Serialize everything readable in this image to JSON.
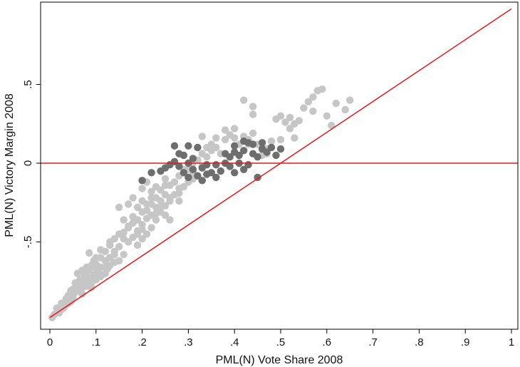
{
  "chart_data": {
    "type": "scatter",
    "title": "",
    "xlabel": "PML(N) Vote Share 2008",
    "ylabel": "PML(N) Victory Margin 2008",
    "xlim": [
      0,
      1
    ],
    "ylim": [
      -1,
      0.5
    ],
    "x_ticks": [
      0,
      0.1,
      0.2,
      0.3,
      0.4,
      0.5,
      0.6,
      0.7,
      0.8,
      0.9,
      1
    ],
    "x_tick_labels": [
      "0",
      ".1",
      ".2",
      ".3",
      ".4",
      ".5",
      ".6",
      ".7",
      ".8",
      ".9",
      "1"
    ],
    "y_ticks": [
      -0.5,
      0,
      0.5
    ],
    "y_tick_labels": [
      "-.5",
      "0",
      ".5"
    ],
    "grid": false,
    "legend": "none",
    "reference_lines": [
      {
        "kind": "horizontal",
        "y": 0,
        "color": "#e41a1c"
      },
      {
        "kind": "segment",
        "x1": 0,
        "y1": -0.98,
        "x2": 1,
        "y2": 0.98,
        "color": "#e41a1c"
      }
    ],
    "series": [
      {
        "color": "#c6c6c6",
        "points": [
          [
            0.005,
            -0.98
          ],
          [
            0.01,
            -0.96
          ],
          [
            0.015,
            -0.95
          ],
          [
            0.02,
            -0.94
          ],
          [
            0.025,
            -0.93
          ],
          [
            0.03,
            -0.91
          ],
          [
            0.035,
            -0.9
          ],
          [
            0.04,
            -0.89
          ],
          [
            0.045,
            -0.88
          ],
          [
            0.05,
            -0.85
          ],
          [
            0.04,
            -0.84
          ],
          [
            0.055,
            -0.82
          ],
          [
            0.06,
            -0.8
          ],
          [
            0.05,
            -0.8
          ],
          [
            0.07,
            -0.79
          ],
          [
            0.065,
            -0.77
          ],
          [
            0.08,
            -0.78
          ],
          [
            0.075,
            -0.75
          ],
          [
            0.09,
            -0.76
          ],
          [
            0.085,
            -0.73
          ],
          [
            0.1,
            -0.74
          ],
          [
            0.095,
            -0.71
          ],
          [
            0.11,
            -0.72
          ],
          [
            0.06,
            -0.7
          ],
          [
            0.07,
            -0.68
          ],
          [
            0.08,
            -0.66
          ],
          [
            0.105,
            -0.69
          ],
          [
            0.12,
            -0.7
          ],
          [
            0.09,
            -0.65
          ],
          [
            0.1,
            -0.64
          ],
          [
            0.11,
            -0.66
          ],
          [
            0.125,
            -0.67
          ],
          [
            0.13,
            -0.65
          ],
          [
            0.14,
            -0.63
          ],
          [
            0.15,
            -0.62
          ],
          [
            0.12,
            -0.62
          ],
          [
            0.1,
            -0.6
          ],
          [
            0.13,
            -0.6
          ],
          [
            0.085,
            -0.57
          ],
          [
            0.11,
            -0.55
          ],
          [
            0.14,
            -0.56
          ],
          [
            0.16,
            -0.58
          ],
          [
            0.15,
            -0.53
          ],
          [
            0.13,
            -0.5
          ],
          [
            0.17,
            -0.5
          ],
          [
            0.19,
            -0.52
          ],
          [
            0.18,
            -0.47
          ],
          [
            0.2,
            -0.48
          ],
          [
            0.16,
            -0.44
          ],
          [
            0.19,
            -0.43
          ],
          [
            0.17,
            -0.4
          ],
          [
            0.18,
            -0.38
          ],
          [
            0.21,
            -0.45
          ],
          [
            0.22,
            -0.41
          ],
          [
            0.2,
            -0.39
          ],
          [
            0.19,
            -0.36
          ],
          [
            0.21,
            -0.35
          ],
          [
            0.22,
            -0.33
          ],
          [
            0.23,
            -0.36
          ],
          [
            0.24,
            -0.31
          ],
          [
            0.2,
            -0.31
          ],
          [
            0.23,
            -0.28
          ],
          [
            0.19,
            -0.28
          ],
          [
            0.21,
            -0.26
          ],
          [
            0.24,
            -0.24
          ],
          [
            0.25,
            -0.27
          ],
          [
            0.22,
            -0.22
          ],
          [
            0.25,
            -0.2
          ],
          [
            0.24,
            -0.17
          ],
          [
            0.26,
            -0.22
          ],
          [
            0.23,
            -0.15
          ],
          [
            0.28,
            -0.19
          ],
          [
            0.26,
            -0.14
          ],
          [
            0.27,
            -0.12
          ],
          [
            0.25,
            -0.1
          ],
          [
            0.22,
            -0.18
          ],
          [
            0.21,
            -0.12
          ],
          [
            0.2,
            -0.16
          ],
          [
            0.18,
            -0.22
          ],
          [
            0.17,
            -0.26
          ],
          [
            0.15,
            -0.28
          ],
          [
            0.28,
            -0.08
          ],
          [
            0.3,
            -0.12
          ],
          [
            0.29,
            -0.04
          ],
          [
            0.31,
            -0.06
          ],
          [
            0.32,
            0.02
          ],
          [
            0.33,
            -0.02
          ],
          [
            0.34,
            0.04
          ],
          [
            0.35,
            0.08
          ],
          [
            0.33,
            0.17
          ],
          [
            0.36,
            0.1
          ],
          [
            0.37,
            0.06
          ],
          [
            0.38,
            0.21
          ],
          [
            0.39,
            0.18
          ],
          [
            0.4,
            0.16
          ],
          [
            0.41,
            0.12
          ],
          [
            0.42,
            0.17
          ],
          [
            0.43,
            0.15
          ],
          [
            0.44,
            0.19
          ],
          [
            0.42,
            0.4
          ],
          [
            0.44,
            0.31
          ],
          [
            0.45,
            0.12
          ],
          [
            0.46,
            0.1
          ],
          [
            0.47,
            0.06
          ],
          [
            0.48,
            0.14
          ],
          [
            0.49,
            0.28
          ],
          [
            0.5,
            0.3
          ],
          [
            0.51,
            0.26
          ],
          [
            0.52,
            0.22
          ],
          [
            0.5,
            0.15
          ],
          [
            0.53,
            0.16
          ],
          [
            0.54,
            0.27
          ],
          [
            0.55,
            0.35
          ],
          [
            0.56,
            0.39
          ],
          [
            0.57,
            0.33
          ],
          [
            0.58,
            0.46
          ],
          [
            0.59,
            0.47
          ],
          [
            0.6,
            0.3
          ],
          [
            0.61,
            0.24
          ],
          [
            0.62,
            0.38
          ],
          [
            0.64,
            0.34
          ],
          [
            0.65,
            0.4
          ],
          [
            0.57,
            0.42
          ],
          [
            0.47,
            0.09
          ],
          [
            0.53,
            0.25
          ],
          [
            0.52,
            0.29
          ],
          [
            0.38,
            0.15
          ],
          [
            0.35,
            0.12
          ],
          [
            0.27,
            -0.2
          ],
          [
            0.29,
            -0.15
          ],
          [
            0.3,
            -0.04
          ],
          [
            0.16,
            -0.48
          ],
          [
            0.14,
            -0.58
          ],
          [
            0.12,
            -0.66
          ],
          [
            0.08,
            -0.72
          ],
          [
            0.09,
            -0.79
          ],
          [
            0.07,
            -0.83
          ],
          [
            0.03,
            -0.92
          ],
          [
            0.02,
            -0.95
          ],
          [
            0.26,
            -0.36
          ],
          [
            0.24,
            -0.28
          ],
          [
            0.23,
            -0.22
          ],
          [
            0.25,
            -0.33
          ],
          [
            0.2,
            -0.42
          ],
          [
            0.18,
            -0.34
          ],
          [
            0.17,
            -0.41
          ],
          [
            0.16,
            -0.36
          ],
          [
            0.15,
            -0.45
          ],
          [
            0.14,
            -0.48
          ],
          [
            0.13,
            -0.52
          ],
          [
            0.12,
            -0.56
          ],
          [
            0.11,
            -0.6
          ],
          [
            0.1,
            -0.67
          ],
          [
            0.095,
            -0.62
          ],
          [
            0.085,
            -0.68
          ],
          [
            0.075,
            -0.71
          ],
          [
            0.065,
            -0.74
          ],
          [
            0.055,
            -0.76
          ],
          [
            0.045,
            -0.81
          ],
          [
            0.035,
            -0.86
          ],
          [
            0.025,
            -0.89
          ],
          [
            0.015,
            -0.92
          ],
          [
            0.21,
            -0.3
          ],
          [
            0.22,
            -0.26
          ],
          [
            0.23,
            -0.32
          ],
          [
            0.19,
            -0.45
          ],
          [
            0.2,
            -0.24
          ],
          [
            0.26,
            -0.24
          ],
          [
            0.28,
            -0.16
          ],
          [
            0.31,
            0.0
          ],
          [
            0.34,
            0.1
          ],
          [
            0.36,
            0.16
          ],
          [
            0.4,
            0.22
          ],
          [
            0.43,
            0.12
          ],
          [
            0.44,
            0.36
          ],
          [
            0.46,
            0.05
          ],
          [
            0.31,
            -0.1
          ],
          [
            0.33,
            0.06
          ],
          [
            0.28,
            -0.24
          ],
          [
            0.25,
            -0.14
          ]
        ]
      },
      {
        "color": "#6e6e6e",
        "points": [
          [
            0.2,
            -0.11
          ],
          [
            0.22,
            -0.06
          ],
          [
            0.25,
            -0.03
          ],
          [
            0.27,
            0.01
          ],
          [
            0.27,
            0.11
          ],
          [
            0.29,
            0.05
          ],
          [
            0.3,
            0.11
          ],
          [
            0.32,
            0.1
          ],
          [
            0.28,
            -0.02
          ],
          [
            0.29,
            -0.06
          ],
          [
            0.3,
            0.0
          ],
          [
            0.31,
            -0.04
          ],
          [
            0.33,
            -0.03
          ],
          [
            0.32,
            -0.08
          ],
          [
            0.33,
            -0.11
          ],
          [
            0.34,
            -0.01
          ],
          [
            0.35,
            -0.06
          ],
          [
            0.36,
            -0.01
          ],
          [
            0.37,
            -0.05
          ],
          [
            0.36,
            -0.09
          ],
          [
            0.38,
            0.0
          ],
          [
            0.38,
            0.06
          ],
          [
            0.39,
            0.04
          ],
          [
            0.39,
            -0.02
          ],
          [
            0.4,
            -0.06
          ],
          [
            0.4,
            0.07
          ],
          [
            0.4,
            0.11
          ],
          [
            0.41,
            0.05
          ],
          [
            0.41,
            0.0
          ],
          [
            0.42,
            0.08
          ],
          [
            0.42,
            -0.04
          ],
          [
            0.43,
            0.13
          ],
          [
            0.43,
            -0.01
          ],
          [
            0.44,
            0.06
          ],
          [
            0.44,
            0.12
          ],
          [
            0.45,
            0.04
          ],
          [
            0.45,
            -0.09
          ],
          [
            0.46,
            0.09
          ],
          [
            0.46,
            0.13
          ],
          [
            0.47,
            0.07
          ],
          [
            0.48,
            0.1
          ],
          [
            0.49,
            0.05
          ],
          [
            0.5,
            0.09
          ],
          [
            0.31,
            0.03
          ],
          [
            0.28,
            0.06
          ],
          [
            0.34,
            -0.07
          ],
          [
            0.26,
            -0.01
          ],
          [
            0.24,
            -0.05
          ],
          [
            0.3,
            -0.09
          ],
          [
            0.42,
            0.14
          ]
        ]
      }
    ]
  }
}
